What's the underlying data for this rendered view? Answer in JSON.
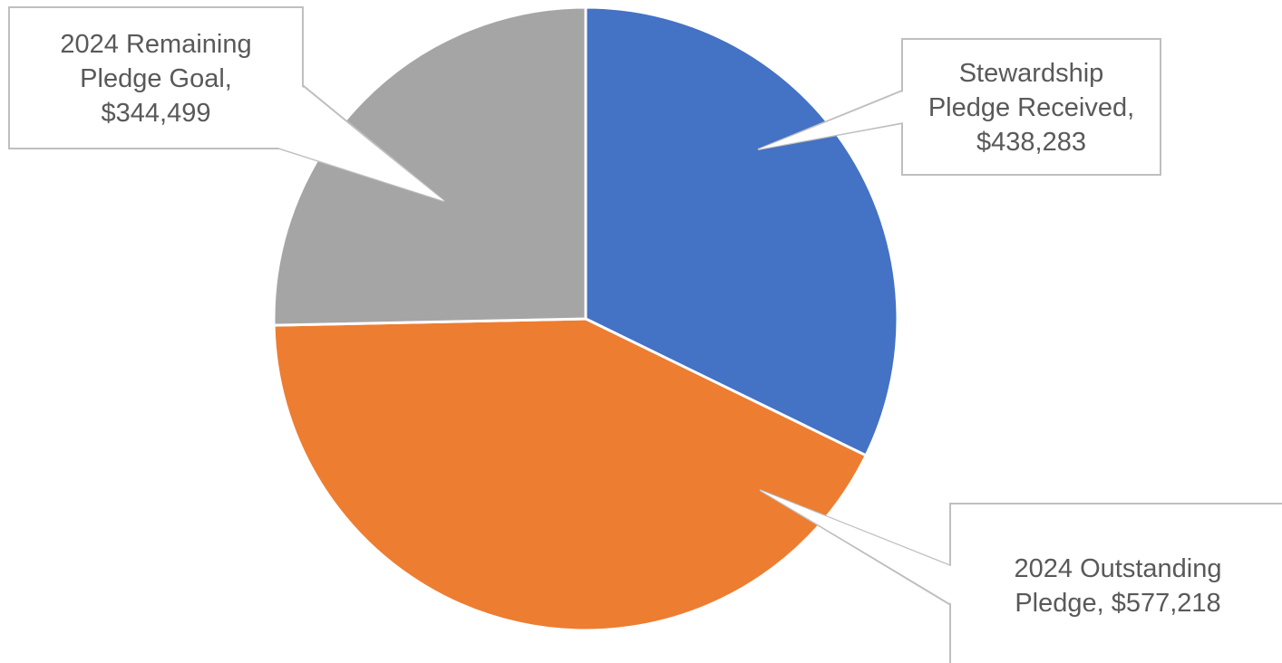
{
  "chart_data": {
    "type": "pie",
    "title": "",
    "slices": [
      {
        "label_lines": [
          "Stewardship",
          "Pledge Received,",
          "$438,283"
        ],
        "value": 438283,
        "color": "#4472C4"
      },
      {
        "label_lines": [
          "2024 Outstanding",
          "Pledge,  $577,218"
        ],
        "value": 577218,
        "color": "#ED7D31"
      },
      {
        "label_lines": [
          "2024 Remaining",
          "Pledge Goal,",
          "$344,499"
        ],
        "value": 344499,
        "color": "#A5A5A5"
      }
    ],
    "start_angle_deg": 0,
    "direction": "clockwise",
    "legend": "none",
    "data_labels": "callouts"
  }
}
